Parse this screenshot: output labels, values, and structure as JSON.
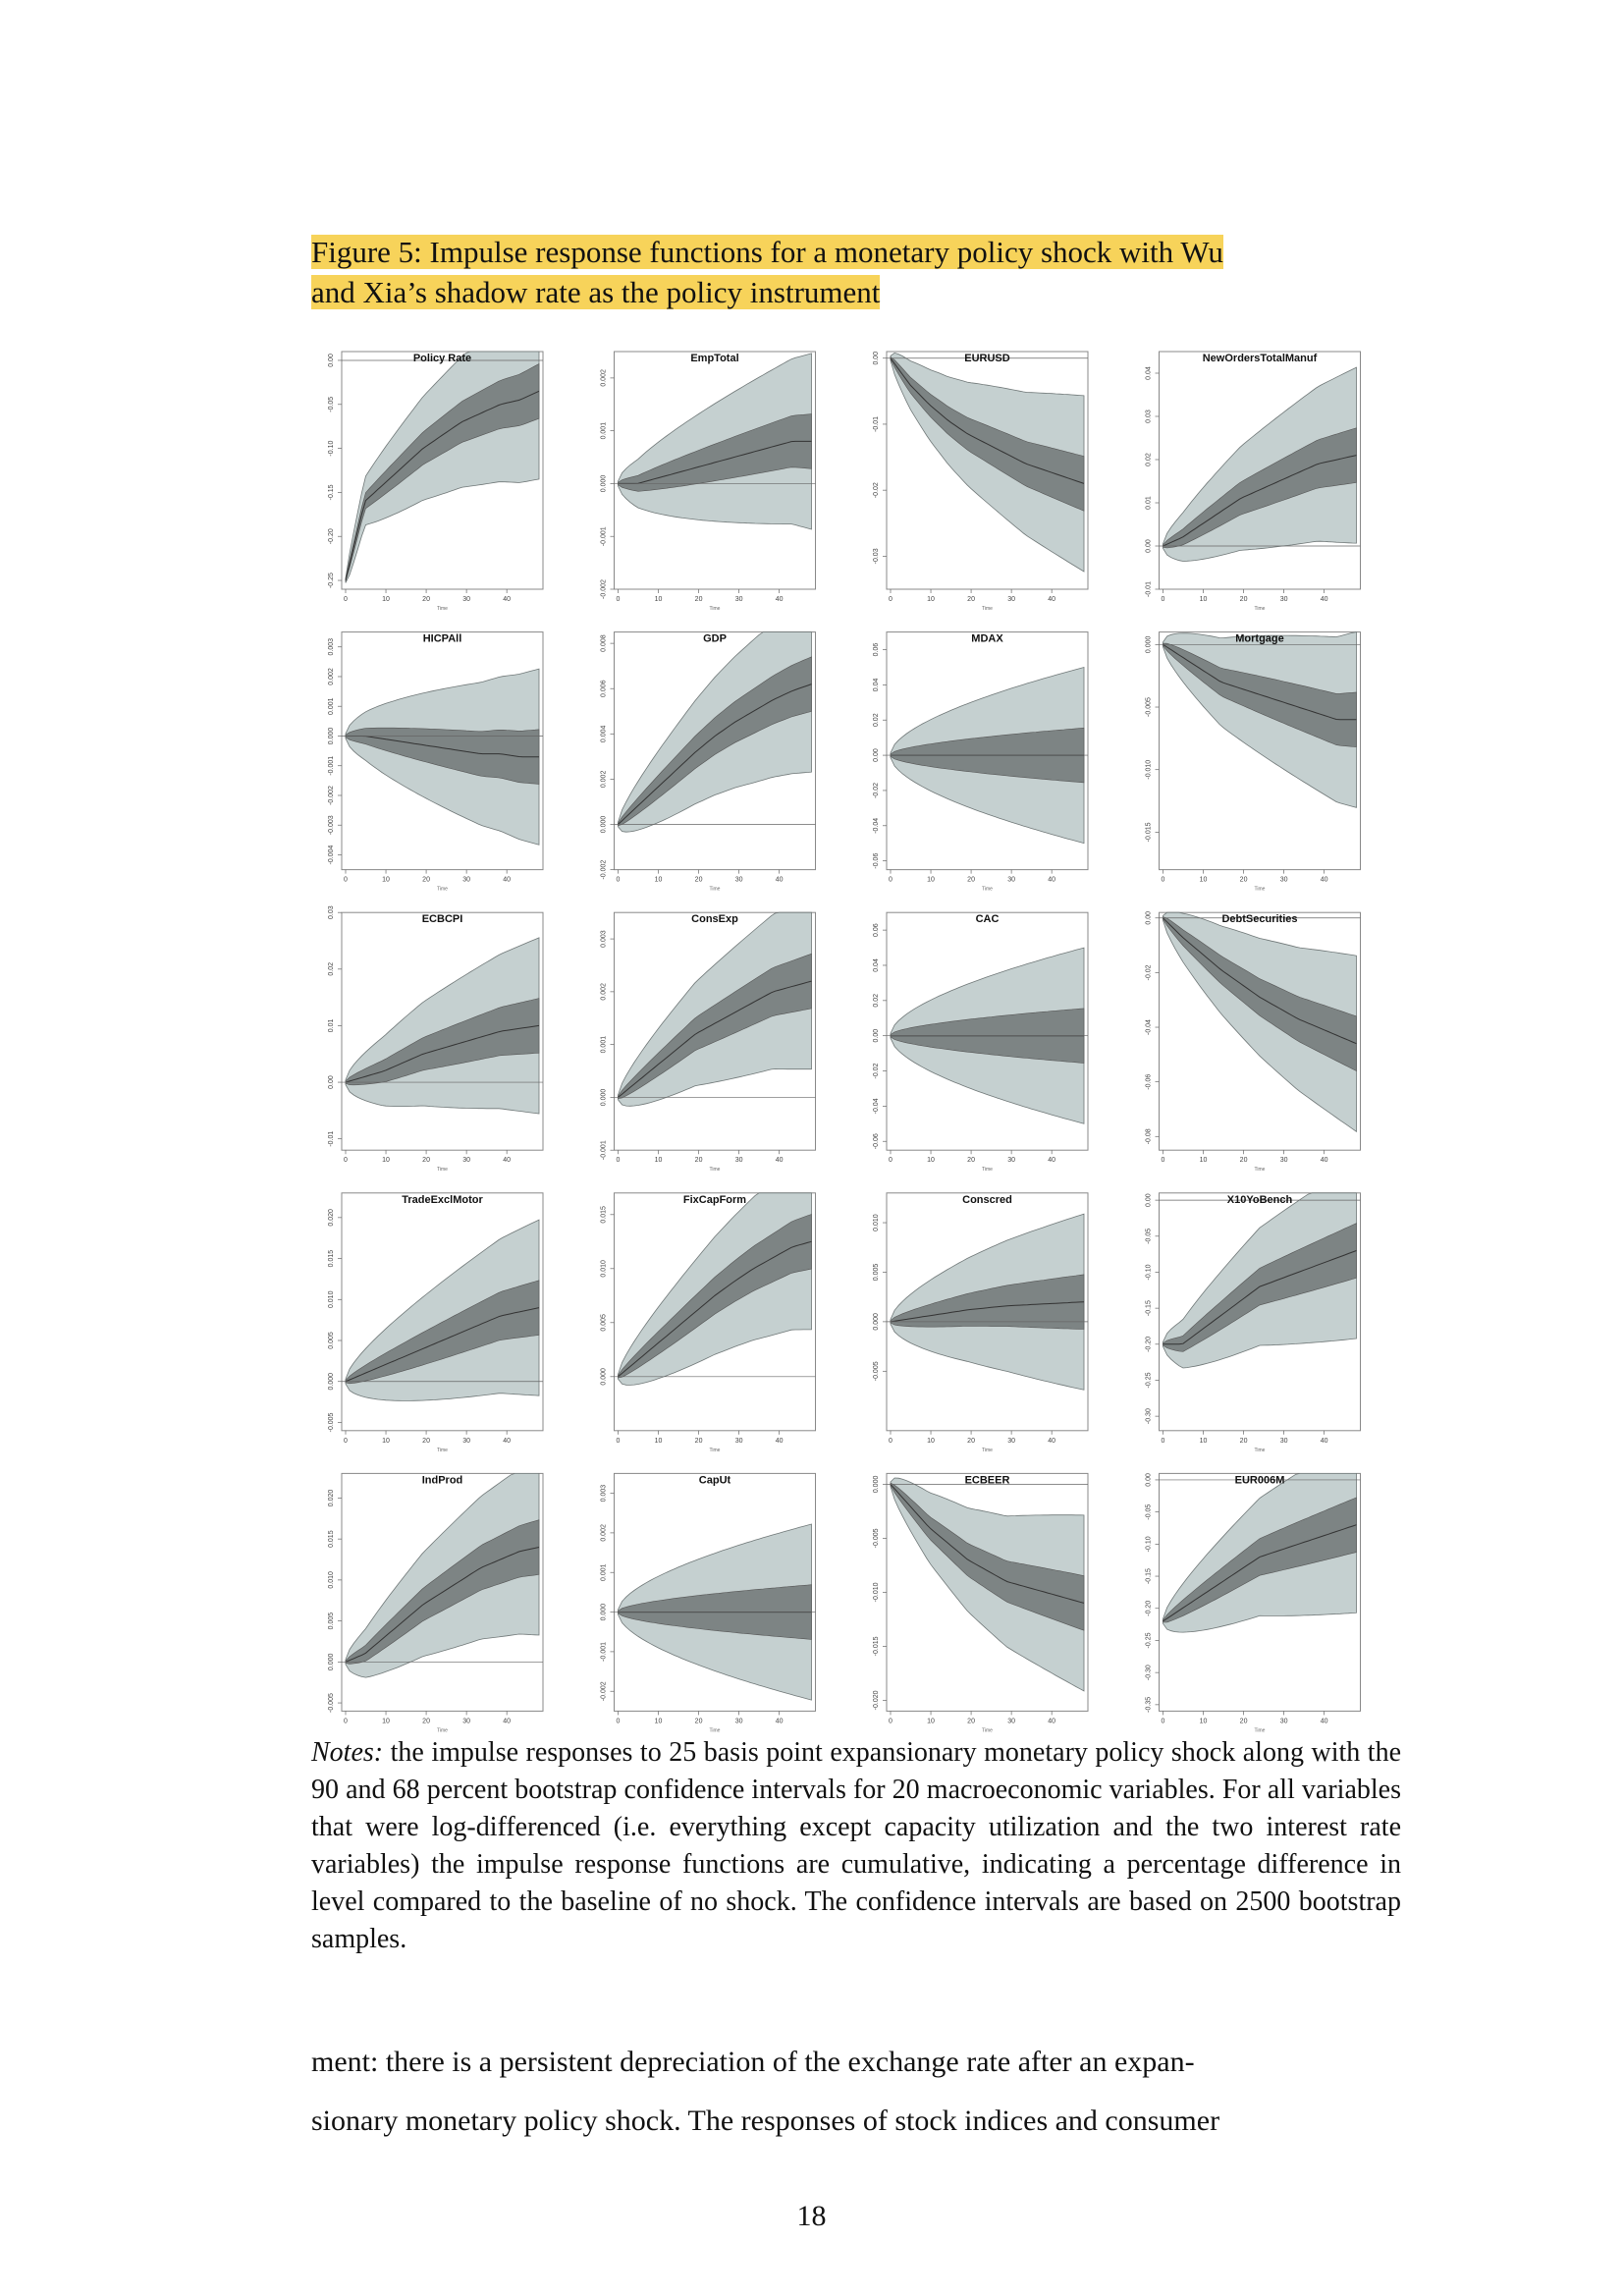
{
  "caption": {
    "line1": "Figure 5: Impulse response functions for a monetary policy shock with Wu",
    "line2": "and Xia’s shadow rate as the policy instrument"
  },
  "chart_data": [
    {
      "type": "area",
      "title": "Policy Rate",
      "yticks": [
        "-0.25",
        "-0.20",
        "-0.15",
        "-0.10",
        "-0.05",
        "0.00"
      ],
      "xticks": [
        "0",
        "10",
        "20",
        "30",
        "40"
      ],
      "xlabel": "Time",
      "median": [
        -0.25,
        -0.16,
        -0.14,
        -0.12,
        -0.1,
        -0.085,
        -0.07,
        -0.06,
        -0.05,
        -0.045,
        -0.035
      ],
      "ylim": [
        -0.26,
        0.01
      ]
    },
    {
      "type": "area",
      "title": "EmpTotal",
      "yticks": [
        "-0.002",
        "-0.001",
        "0.000",
        "0.001",
        "0.002"
      ],
      "xticks": [
        "0",
        "10",
        "20",
        "30",
        "40"
      ],
      "xlabel": "Time",
      "median": [
        0,
        0,
        0.0001,
        0.0002,
        0.0003,
        0.0004,
        0.0005,
        0.0006,
        0.0007,
        0.0008,
        0.0008
      ],
      "ylim": [
        -0.002,
        0.0025
      ]
    },
    {
      "type": "area",
      "title": "EURUSD",
      "yticks": [
        "-0.03",
        "-0.02",
        "-0.01",
        "0.00"
      ],
      "xticks": [
        "0",
        "10",
        "20",
        "30",
        "40"
      ],
      "xlabel": "Time",
      "median": [
        0,
        -0.004,
        -0.007,
        -0.0095,
        -0.0115,
        -0.013,
        -0.0145,
        -0.016,
        -0.017,
        -0.018,
        -0.019
      ],
      "ylim": [
        -0.035,
        0.001
      ]
    },
    {
      "type": "area",
      "title": "NewOrdersTotalManuf",
      "yticks": [
        "-0.01",
        "0.00",
        "0.01",
        "0.02",
        "0.03",
        "0.04"
      ],
      "xticks": [
        "0",
        "10",
        "20",
        "30",
        "40"
      ],
      "xlabel": "Time",
      "median": [
        0,
        0.002,
        0.005,
        0.008,
        0.011,
        0.013,
        0.015,
        0.017,
        0.019,
        0.02,
        0.021
      ],
      "ylim": [
        -0.01,
        0.045
      ]
    },
    {
      "type": "area",
      "title": "HICPAll",
      "yticks": [
        "-0.004",
        "-0.003",
        "-0.002",
        "-0.001",
        "0.000",
        "0.001",
        "0.002",
        "0.003"
      ],
      "xticks": [
        "0",
        "10",
        "20",
        "30",
        "40"
      ],
      "xlabel": "Time",
      "median": [
        0,
        0,
        -0.0001,
        -0.0002,
        -0.0003,
        -0.0004,
        -0.0005,
        -0.0006,
        -0.0006,
        -0.0007,
        -0.0007
      ],
      "ylim": [
        -0.0045,
        0.0035
      ]
    },
    {
      "type": "area",
      "title": "GDP",
      "yticks": [
        "-0.002",
        "0.000",
        "0.002",
        "0.004",
        "0.006",
        "0.008"
      ],
      "xticks": [
        "0",
        "10",
        "20",
        "30",
        "40"
      ],
      "xlabel": "Time",
      "median": [
        0,
        0.0008,
        0.0016,
        0.0024,
        0.0032,
        0.0039,
        0.0045,
        0.005,
        0.0055,
        0.0059,
        0.0062
      ],
      "ylim": [
        -0.002,
        0.0085
      ]
    },
    {
      "type": "area",
      "title": "MDAX",
      "yticks": [
        "-0.06",
        "-0.04",
        "-0.02",
        "0.00",
        "0.02",
        "0.04",
        "0.06"
      ],
      "xticks": [
        "0",
        "10",
        "20",
        "30",
        "40"
      ],
      "xlabel": "Time",
      "median": [
        0,
        0,
        0,
        0,
        0,
        0,
        0,
        0,
        0,
        0,
        0
      ],
      "ylim": [
        -0.065,
        0.07
      ]
    },
    {
      "type": "area",
      "title": "Mortgage",
      "yticks": [
        "-0.015",
        "-0.010",
        "-0.005",
        "0.000"
      ],
      "xticks": [
        "0",
        "10",
        "20",
        "30",
        "40"
      ],
      "xlabel": "Time",
      "median": [
        0,
        -0.001,
        -0.002,
        -0.003,
        -0.0035,
        -0.004,
        -0.0045,
        -0.005,
        -0.0055,
        -0.006,
        -0.006
      ],
      "ylim": [
        -0.018,
        0.001
      ]
    },
    {
      "type": "area",
      "title": "ECBCPI",
      "yticks": [
        "-0.01",
        "0.00",
        "0.01",
        "0.02",
        "0.03"
      ],
      "xticks": [
        "0",
        "10",
        "20",
        "30",
        "40"
      ],
      "xlabel": "Time",
      "median": [
        0,
        0.001,
        0.002,
        0.0035,
        0.005,
        0.006,
        0.007,
        0.008,
        0.009,
        0.0095,
        0.01
      ],
      "ylim": [
        -0.012,
        0.03
      ]
    },
    {
      "type": "area",
      "title": "ConsExp",
      "yticks": [
        "-0.001",
        "0.000",
        "0.001",
        "0.002",
        "0.003"
      ],
      "xticks": [
        "0",
        "10",
        "20",
        "30",
        "40"
      ],
      "xlabel": "Time",
      "median": [
        0,
        0.0003,
        0.0006,
        0.0009,
        0.0012,
        0.0014,
        0.0016,
        0.0018,
        0.002,
        0.0021,
        0.0022
      ],
      "ylim": [
        -0.001,
        0.0035
      ]
    },
    {
      "type": "area",
      "title": "CAC",
      "yticks": [
        "-0.06",
        "-0.04",
        "-0.02",
        "0.00",
        "0.02",
        "0.04",
        "0.06"
      ],
      "xticks": [
        "0",
        "10",
        "20",
        "30",
        "40"
      ],
      "xlabel": "Time",
      "median": [
        0,
        0,
        0,
        0,
        0,
        0,
        0,
        0,
        0,
        0,
        0
      ],
      "ylim": [
        -0.065,
        0.07
      ]
    },
    {
      "type": "area",
      "title": "DebtSecurities",
      "yticks": [
        "-0.08",
        "-0.06",
        "-0.04",
        "-0.02",
        "0.00"
      ],
      "xticks": [
        "0",
        "10",
        "20",
        "30",
        "40"
      ],
      "xlabel": "Time",
      "median": [
        0,
        -0.007,
        -0.013,
        -0.019,
        -0.024,
        -0.029,
        -0.033,
        -0.037,
        -0.04,
        -0.043,
        -0.046
      ],
      "ylim": [
        -0.085,
        0.002
      ]
    },
    {
      "type": "area",
      "title": "TradeExclMotor",
      "yticks": [
        "-0.005",
        "0.000",
        "0.005",
        "0.010",
        "0.015",
        "0.020"
      ],
      "xticks": [
        "0",
        "10",
        "20",
        "30",
        "40"
      ],
      "xlabel": "Time",
      "median": [
        0,
        0.001,
        0.002,
        0.003,
        0.004,
        0.005,
        0.006,
        0.007,
        0.008,
        0.0085,
        0.009
      ],
      "ylim": [
        -0.006,
        0.023
      ]
    },
    {
      "type": "area",
      "title": "FixCapForm",
      "yticks": [
        "0.000",
        "0.005",
        "0.010",
        "0.015"
      ],
      "xticks": [
        "0",
        "10",
        "20",
        "30",
        "40"
      ],
      "xlabel": "Time",
      "median": [
        0,
        0.0015,
        0.003,
        0.0045,
        0.006,
        0.0075,
        0.0088,
        0.01,
        0.011,
        0.012,
        0.0125
      ],
      "ylim": [
        -0.005,
        0.017
      ]
    },
    {
      "type": "area",
      "title": "Conscred",
      "yticks": [
        "-0.005",
        "0.000",
        "0.005",
        "0.010"
      ],
      "xticks": [
        "0",
        "10",
        "20",
        "30",
        "40"
      ],
      "xlabel": "Time",
      "median": [
        0,
        0.0003,
        0.0006,
        0.0009,
        0.0012,
        0.0014,
        0.0016,
        0.0017,
        0.0018,
        0.0019,
        0.002
      ],
      "ylim": [
        -0.011,
        0.013
      ]
    },
    {
      "type": "area",
      "title": "X10YoBench",
      "yticks": [
        "-0.30",
        "-0.25",
        "-0.20",
        "-0.15",
        "-0.10",
        "-0.05",
        "0.00"
      ],
      "xticks": [
        "0",
        "10",
        "20",
        "30",
        "40"
      ],
      "xlabel": "Time",
      "median": [
        -0.2,
        -0.2,
        -0.18,
        -0.16,
        -0.14,
        -0.12,
        -0.11,
        -0.1,
        -0.09,
        -0.08,
        -0.07
      ],
      "ylim": [
        -0.32,
        0.01
      ]
    },
    {
      "type": "area",
      "title": "IndProd",
      "yticks": [
        "-0.005",
        "0.000",
        "0.005",
        "0.010",
        "0.015",
        "0.020"
      ],
      "xticks": [
        "0",
        "10",
        "20",
        "30",
        "40"
      ],
      "xlabel": "Time",
      "median": [
        0,
        0.001,
        0.003,
        0.005,
        0.007,
        0.0085,
        0.01,
        0.0115,
        0.0125,
        0.0135,
        0.014
      ],
      "ylim": [
        -0.006,
        0.023
      ]
    },
    {
      "type": "area",
      "title": "CapUt",
      "yticks": [
        "-0.002",
        "-0.001",
        "0.000",
        "0.001",
        "0.002",
        "0.003"
      ],
      "xticks": [
        "0",
        "10",
        "20",
        "30",
        "40"
      ],
      "xlabel": "Time",
      "median": [
        0,
        0,
        0,
        0,
        0,
        0,
        0,
        0,
        0,
        0,
        0
      ],
      "ylim": [
        -0.0025,
        0.0035
      ]
    },
    {
      "type": "area",
      "title": "ECBEER",
      "yticks": [
        "-0.020",
        "-0.015",
        "-0.010",
        "-0.005",
        "0.000"
      ],
      "xticks": [
        "0",
        "10",
        "20",
        "30",
        "40"
      ],
      "xlabel": "Time",
      "median": [
        0,
        -0.002,
        -0.004,
        -0.0055,
        -0.007,
        -0.008,
        -0.009,
        -0.0095,
        -0.01,
        -0.0105,
        -0.011
      ],
      "ylim": [
        -0.021,
        0.001
      ]
    },
    {
      "type": "area",
      "title": "EUR006M",
      "yticks": [
        "-0.35",
        "-0.30",
        "-0.25",
        "-0.20",
        "-0.15",
        "-0.10",
        "-0.05",
        "0.00"
      ],
      "xticks": [
        "0",
        "10",
        "20",
        "30",
        "40"
      ],
      "xlabel": "Time",
      "median": [
        -0.22,
        -0.2,
        -0.18,
        -0.16,
        -0.14,
        -0.12,
        -0.11,
        -0.1,
        -0.09,
        -0.08,
        -0.07
      ],
      "ylim": [
        -0.36,
        0.01
      ]
    }
  ],
  "notes": {
    "label": "Notes:",
    "text": " the impulse responses to 25 basis point expansionary monetary policy shock along with the 90 and 68 percent bootstrap confidence intervals for 20 macroeconomic variables. For all variables that were log-differenced (i.e. everything except capacity utilization and the two interest rate variables) the impulse response functions are cumulative, indicating a percentage difference in level compared to the baseline of no shock. The confidence intervals are based on 2500 bootstrap samples."
  },
  "body": {
    "line1": "ment: there is a persistent depreciation of the exchange rate after an expan-",
    "line2": "sionary monetary policy shock. The responses of stock indices and consumer"
  },
  "page_number": "18",
  "colors": {
    "highlight": "#f7d35a",
    "outer_band": "#c5d0d0",
    "inner_band": "#7d8484",
    "line": "#333333"
  }
}
